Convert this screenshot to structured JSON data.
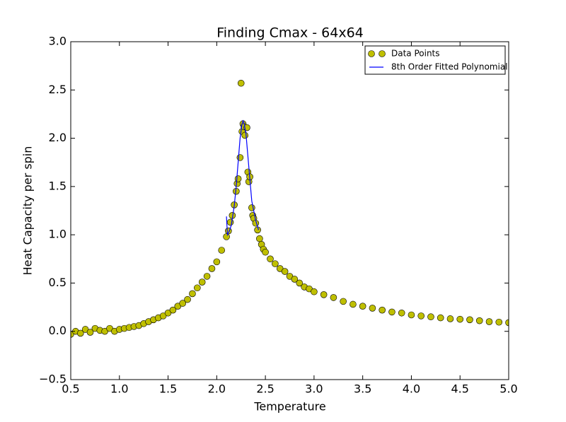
{
  "chart_data": {
    "type": "scatter",
    "title": "Finding Cmax - 64x64",
    "xlabel": "Temperature",
    "ylabel": "Heat Capacity per spin",
    "xlim": [
      0.5,
      5.0
    ],
    "ylim": [
      -0.5,
      3.0
    ],
    "xticks": [
      {
        "value": 0.5,
        "label": "0.5"
      },
      {
        "value": 1,
        "label": "1.0"
      },
      {
        "value": 1.5,
        "label": "1.5"
      },
      {
        "value": 2,
        "label": "2.0"
      },
      {
        "value": 2.5,
        "label": "2.5"
      },
      {
        "value": 3,
        "label": "3.0"
      },
      {
        "value": 3.5,
        "label": "3.5"
      },
      {
        "value": 4,
        "label": "4.0"
      },
      {
        "value": 4.5,
        "label": "4.5"
      },
      {
        "value": 5,
        "label": "5.0"
      }
    ],
    "yticks": [
      {
        "value": -0.5,
        "label": "−0.5"
      },
      {
        "value": 0,
        "label": "0.0"
      },
      {
        "value": 0.5,
        "label": "0.5"
      },
      {
        "value": 1,
        "label": "1.0"
      },
      {
        "value": 1.5,
        "label": "1.5"
      },
      {
        "value": 2,
        "label": "2.0"
      },
      {
        "value": 2.5,
        "label": "2.5"
      },
      {
        "value": 3,
        "label": "3.0"
      }
    ],
    "legend": "upper right",
    "series": [
      {
        "name": "Data Points",
        "type": "scatter",
        "color": "#bfbf00",
        "x": [
          0.5,
          0.55,
          0.6,
          0.65,
          0.7,
          0.75,
          0.8,
          0.85,
          0.9,
          0.95,
          1.0,
          1.05,
          1.1,
          1.15,
          1.2,
          1.25,
          1.3,
          1.35,
          1.4,
          1.45,
          1.5,
          1.55,
          1.6,
          1.65,
          1.7,
          1.75,
          1.8,
          1.85,
          1.9,
          1.95,
          2.0,
          2.05,
          2.1,
          2.12,
          2.14,
          2.16,
          2.18,
          2.2,
          2.21,
          2.22,
          2.24,
          2.25,
          2.26,
          2.27,
          2.28,
          2.29,
          2.31,
          2.32,
          2.33,
          2.34,
          2.36,
          2.37,
          2.38,
          2.4,
          2.42,
          2.44,
          2.46,
          2.48,
          2.5,
          2.55,
          2.6,
          2.65,
          2.7,
          2.75,
          2.8,
          2.85,
          2.9,
          2.95,
          3.0,
          3.1,
          3.2,
          3.3,
          3.4,
          3.5,
          3.6,
          3.7,
          3.8,
          3.9,
          4.0,
          4.1,
          4.2,
          4.3,
          4.4,
          4.5,
          4.6,
          4.7,
          4.8,
          4.9,
          5.0
        ],
        "values": [
          -0.03,
          0.0,
          -0.02,
          0.02,
          -0.01,
          0.03,
          0.01,
          0.0,
          0.03,
          0.0,
          0.02,
          0.03,
          0.04,
          0.05,
          0.06,
          0.08,
          0.1,
          0.12,
          0.14,
          0.16,
          0.19,
          0.22,
          0.26,
          0.29,
          0.33,
          0.39,
          0.45,
          0.51,
          0.57,
          0.65,
          0.72,
          0.84,
          0.98,
          1.04,
          1.13,
          1.2,
          1.31,
          1.45,
          1.53,
          1.58,
          1.8,
          2.57,
          2.07,
          2.15,
          2.12,
          2.03,
          2.11,
          1.65,
          1.55,
          1.6,
          1.28,
          1.2,
          1.17,
          1.12,
          1.05,
          0.96,
          0.9,
          0.85,
          0.82,
          0.75,
          0.7,
          0.65,
          0.62,
          0.57,
          0.54,
          0.5,
          0.46,
          0.44,
          0.41,
          0.38,
          0.35,
          0.31,
          0.28,
          0.26,
          0.24,
          0.22,
          0.2,
          0.19,
          0.17,
          0.16,
          0.15,
          0.14,
          0.13,
          0.125,
          0.12,
          0.11,
          0.1,
          0.095,
          0.09
        ]
      },
      {
        "name": "8th Order Fitted Polynomial",
        "type": "line",
        "color": "#0000ff",
        "x": [
          2.1,
          2.11,
          2.13,
          2.15,
          2.18,
          2.2,
          2.22,
          2.24,
          2.26,
          2.27,
          2.28,
          2.3,
          2.33,
          2.36,
          2.4,
          2.43
        ],
        "values": [
          1.19,
          1.0,
          1.04,
          1.1,
          1.3,
          1.5,
          1.75,
          2.0,
          2.15,
          2.18,
          2.16,
          2.05,
          1.7,
          1.35,
          1.15,
          1.05
        ]
      }
    ]
  }
}
